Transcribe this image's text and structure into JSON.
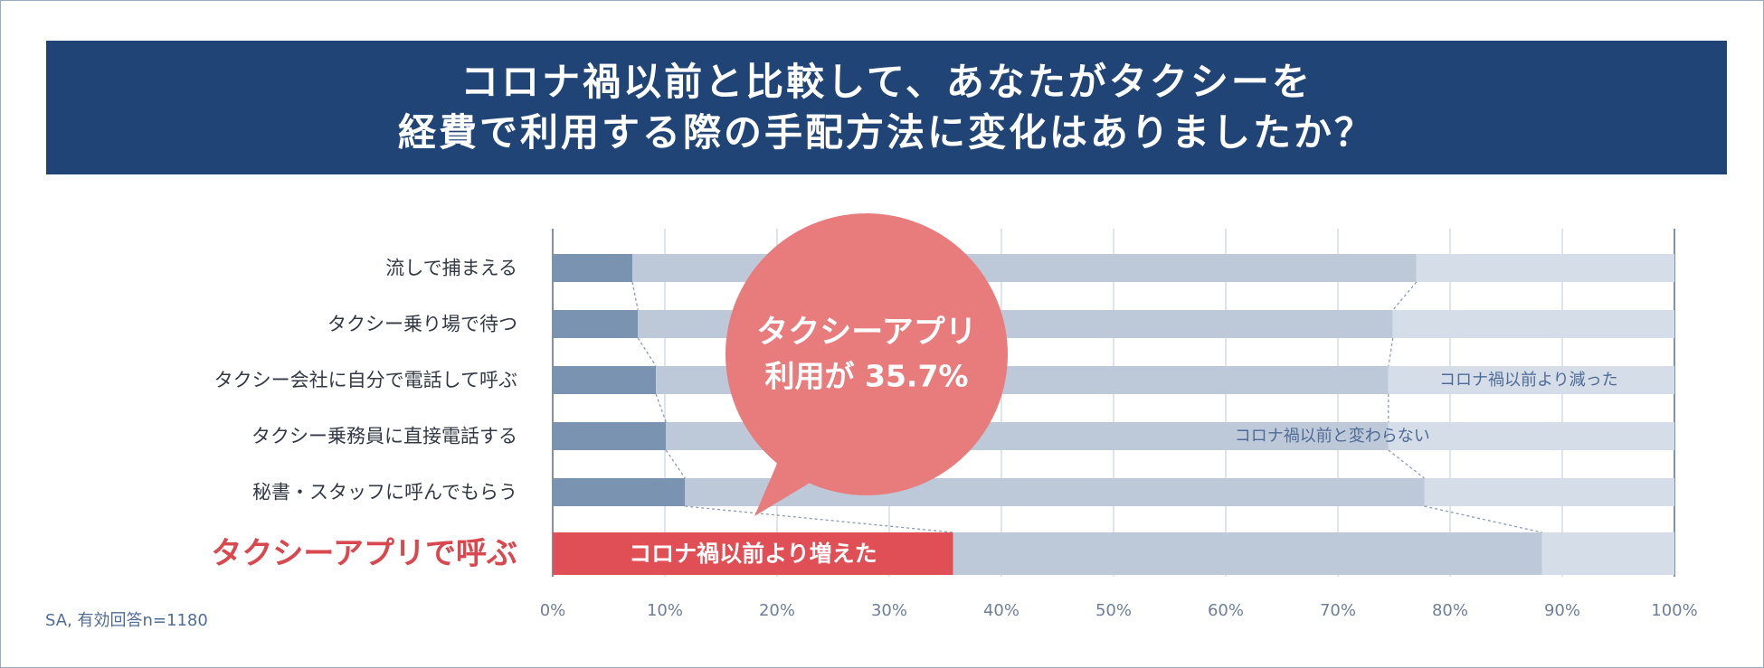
{
  "title": {
    "line1": "コロナ禍以前と比較して、あなたがタクシーを",
    "line2": "経費で利用する際の手配方法に変化はありましたか？"
  },
  "note": "SA, 有効回答n=1180",
  "callout": {
    "line1": "タクシーアプリ",
    "line2": "利用が 35.7%",
    "color": "#e87c7d"
  },
  "colors": {
    "increased": "#7a93b1",
    "unchanged": "#bdc9d8",
    "decreased": "#d5dde8",
    "highlight": "#e04f55",
    "highlight_label": "#d9484e",
    "header": "#1f4475",
    "axis_text": "#6f7f96",
    "label_text": "#333a45"
  },
  "chart_data": {
    "type": "bar",
    "orientation": "horizontal",
    "stacked": true,
    "categories": [
      "流しで捕まえる",
      "タクシー乗り場で待つ",
      "タクシー会社に自分で電話して呼ぶ",
      "タクシー乗務員に直接電話する",
      "秘書・スタッフに呼んでもらう",
      "タクシーアプリで呼ぶ"
    ],
    "highlight_category": "タクシーアプリで呼ぶ",
    "series": [
      {
        "name": "コロナ禍以前より増えた",
        "values": [
          7.1,
          7.6,
          9.2,
          10.1,
          11.8,
          35.7
        ]
      },
      {
        "name": "コロナ禍以前と変わらない",
        "values": [
          69.9,
          67.3,
          65.3,
          64.4,
          65.9,
          52.5
        ]
      },
      {
        "name": "コロナ禍以前より減った",
        "values": [
          23.0,
          25.1,
          25.5,
          25.5,
          22.3,
          11.8
        ]
      }
    ],
    "xlim": [
      0,
      100
    ],
    "xticks": [
      "0%",
      "10%",
      "20%",
      "30%",
      "40%",
      "50%",
      "60%",
      "70%",
      "80%",
      "90%",
      "100%"
    ],
    "grid": true,
    "xlabel": "",
    "ylabel": ""
  }
}
